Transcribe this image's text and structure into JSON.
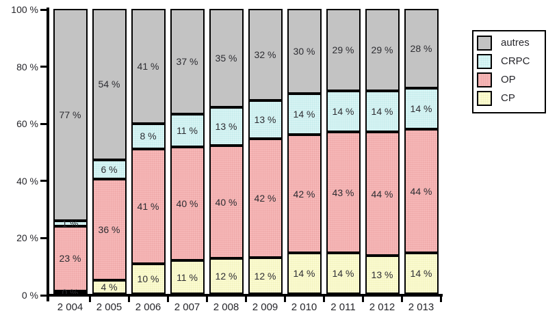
{
  "chart_data": {
    "type": "bar",
    "stacked": true,
    "title": "",
    "categories": [
      "2 004",
      "2 005",
      "2 006",
      "2 007",
      "2 008",
      "2 009",
      "2 010",
      "2 011",
      "2 012",
      "2 013"
    ],
    "series": [
      {
        "name": "CP",
        "color": "#fbfbd2",
        "dot": "#f1f1bb",
        "values": [
          0,
          4,
          10,
          11,
          12,
          12,
          14,
          14,
          13,
          14
        ]
      },
      {
        "name": "OP",
        "color": "#f6b8b8",
        "dot": "#eda6a6",
        "values": [
          23,
          36,
          41,
          40,
          40,
          42,
          42,
          43,
          44,
          44
        ]
      },
      {
        "name": "CRPC",
        "color": "#d8f4f4",
        "dot": "#c2eaea",
        "values": [
          1,
          6,
          8,
          11,
          13,
          13,
          14,
          14,
          14,
          14
        ]
      },
      {
        "name": "autres",
        "color": "#c3c3c3",
        "dot": null,
        "values": [
          77,
          54,
          41,
          37,
          35,
          32,
          30,
          29,
          29,
          28
        ]
      }
    ],
    "segment_label_suffix": " %",
    "y_axis": {
      "min": 0,
      "max": 100,
      "ticks": [
        {
          "value": 100,
          "label": "100 %"
        },
        {
          "value": 80,
          "label": "80 %"
        },
        {
          "value": 60,
          "label": "60 %"
        },
        {
          "value": 40,
          "label": "40 %"
        },
        {
          "value": 20,
          "label": "20 %"
        },
        {
          "value": 0,
          "label": "0 %"
        }
      ]
    },
    "legend": {
      "position": "top-right",
      "order": [
        "autres",
        "CRPC",
        "OP",
        "CP"
      ]
    },
    "grid": false
  }
}
